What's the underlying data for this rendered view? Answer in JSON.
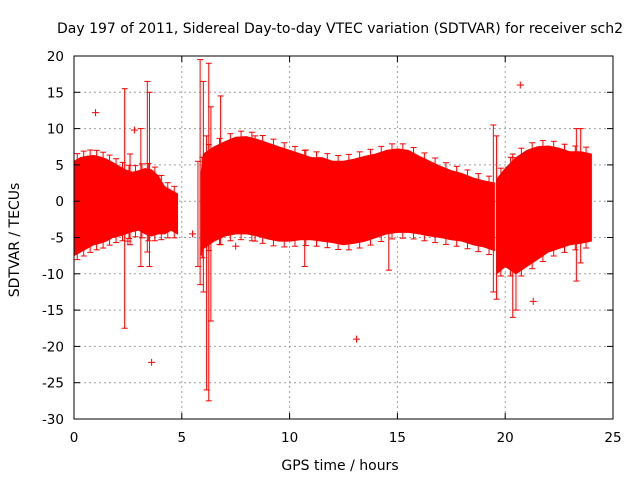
{
  "chart_data": {
    "type": "scatter",
    "title": "Day 197 of 2011, Sidereal Day-to-day VTEC variation (SDTVAR) for receiver sch2",
    "xlabel": "GPS time / hours",
    "ylabel": "SDTVAR / TECUs",
    "xlim": [
      0,
      25
    ],
    "ylim": [
      -30,
      20
    ],
    "xticks": [
      0,
      5,
      10,
      15,
      20,
      25
    ],
    "yticks": [
      -30,
      -25,
      -20,
      -15,
      -10,
      -5,
      0,
      5,
      10,
      15,
      20
    ],
    "grid": true,
    "color": "#ff0000",
    "series": [
      {
        "name": "SDTVAR envelope",
        "segments": [
          {
            "t": [
              0.0,
              0.3,
              0.6,
              0.9,
              1.2,
              1.5,
              1.8,
              2.1,
              2.4,
              2.7,
              3.0,
              3.3,
              3.6,
              3.9,
              4.2,
              4.5,
              4.8
            ],
            "upper": [
              5.5,
              6.0,
              6.2,
              6.3,
              6.1,
              5.8,
              5.3,
              4.8,
              4.3,
              4.0,
              4.2,
              4.5,
              4.3,
              3.5,
              2.0,
              1.5,
              1.0
            ],
            "lower": [
              -7.5,
              -7.0,
              -6.5,
              -6.0,
              -5.8,
              -5.5,
              -5.0,
              -4.8,
              -4.5,
              -4.2,
              -4.0,
              -4.5,
              -4.8,
              -4.5,
              -4.5,
              -4.0,
              -4.5
            ]
          },
          {
            "t": [
              5.9,
              6.0,
              6.5,
              7.0,
              7.5,
              8.0,
              8.5,
              9.0,
              9.5,
              10.0,
              10.5,
              11.0,
              11.5,
              12.0,
              12.5,
              13.0,
              13.5,
              14.0,
              14.5,
              15.0,
              15.5,
              16.0,
              16.5,
              17.0,
              17.5,
              18.0,
              18.5,
              19.0,
              19.5
            ],
            "upper": [
              4.0,
              6.5,
              7.5,
              8.2,
              8.8,
              8.9,
              8.5,
              8.0,
              7.5,
              7.0,
              6.5,
              6.0,
              6.0,
              5.5,
              5.5,
              5.8,
              6.2,
              6.5,
              7.0,
              7.2,
              7.0,
              6.2,
              5.5,
              4.8,
              4.2,
              3.8,
              3.2,
              2.8,
              2.5
            ],
            "lower": [
              -7.5,
              -6.5,
              -5.5,
              -4.8,
              -4.5,
              -4.5,
              -4.8,
              -5.2,
              -5.5,
              -5.5,
              -5.3,
              -5.3,
              -5.5,
              -5.7,
              -6.0,
              -5.8,
              -5.5,
              -5.0,
              -4.5,
              -4.3,
              -4.3,
              -4.5,
              -4.8,
              -5.0,
              -5.3,
              -5.5,
              -6.0,
              -6.3,
              -6.8
            ]
          },
          {
            "t": [
              19.6,
              20.0,
              20.5,
              21.0,
              21.5,
              22.0,
              22.5,
              23.0,
              23.5,
              24.0
            ],
            "upper": [
              3.0,
              4.5,
              6.0,
              7.0,
              7.5,
              7.6,
              7.3,
              6.8,
              6.8,
              6.5
            ],
            "lower": [
              -10.0,
              -9.0,
              -10.0,
              -9.0,
              -8.0,
              -7.0,
              -6.5,
              -6.0,
              -5.8,
              -5.5
            ]
          }
        ],
        "spikes": [
          {
            "t": 2.35,
            "lo": -17.5,
            "hi": 15.5
          },
          {
            "t": 2.6,
            "lo": -6.0,
            "hi": 6.5
          },
          {
            "t": 3.1,
            "lo": -9.0,
            "hi": 10.0
          },
          {
            "t": 3.4,
            "lo": -7.0,
            "hi": 16.5
          },
          {
            "t": 3.5,
            "lo": -9.0,
            "hi": 15.0
          },
          {
            "t": 5.75,
            "lo": -9.0,
            "hi": 5.5
          },
          {
            "t": 5.85,
            "lo": -11.5,
            "hi": 19.5
          },
          {
            "t": 6.0,
            "lo": -12.5,
            "hi": 16.5
          },
          {
            "t": 6.15,
            "lo": -26.0,
            "hi": 9.0
          },
          {
            "t": 6.25,
            "lo": -27.5,
            "hi": 19.0
          },
          {
            "t": 6.35,
            "lo": -16.5,
            "hi": 13.0
          },
          {
            "t": 6.8,
            "lo": -6.0,
            "hi": 14.5
          },
          {
            "t": 8.4,
            "lo": -5.5,
            "hi": 9.0
          },
          {
            "t": 10.7,
            "lo": -9.0,
            "hi": 7.0
          },
          {
            "t": 14.6,
            "lo": -9.5,
            "hi": 7.0
          },
          {
            "t": 19.45,
            "lo": -12.5,
            "hi": 10.5
          },
          {
            "t": 19.6,
            "lo": -13.5,
            "hi": 9.0
          },
          {
            "t": 20.35,
            "lo": -16.0,
            "hi": 6.5
          },
          {
            "t": 20.5,
            "lo": -15.0,
            "hi": 6.0
          },
          {
            "t": 23.3,
            "lo": -11.0,
            "hi": 10.0
          },
          {
            "t": 23.5,
            "lo": -8.5,
            "hi": 10.0
          }
        ],
        "outliers": [
          {
            "t": 1.0,
            "v": 12.2
          },
          {
            "t": 2.5,
            "v": -5.5
          },
          {
            "t": 2.8,
            "v": 9.8
          },
          {
            "t": 3.6,
            "v": -22.2
          },
          {
            "t": 5.5,
            "v": -4.5
          },
          {
            "t": 7.5,
            "v": -6.2
          },
          {
            "t": 13.1,
            "v": -19.0
          },
          {
            "t": 20.7,
            "v": 16.0
          },
          {
            "t": 21.3,
            "v": -13.8
          },
          {
            "t": 23.8,
            "v": 6.0
          }
        ]
      }
    ]
  }
}
